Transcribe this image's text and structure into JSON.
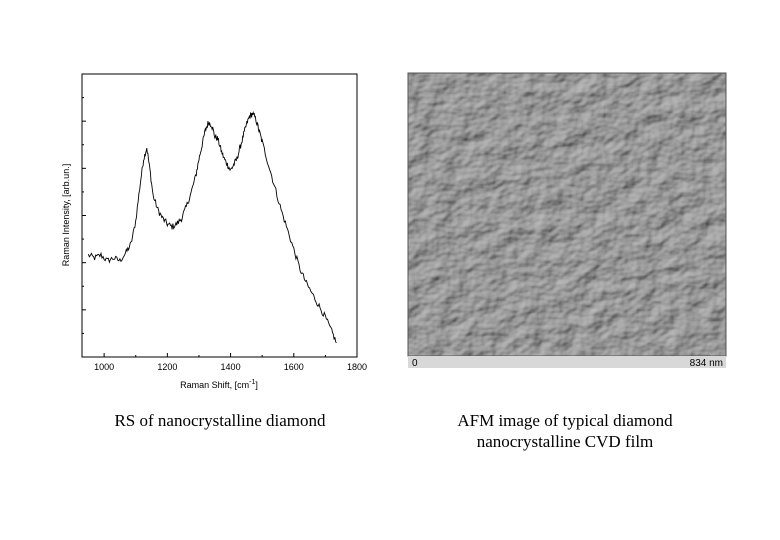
{
  "chart_data": {
    "type": "line",
    "xlabel": "Raman Shift, [cm",
    "xlabel_sup": "-1",
    "xlabel_end": "]",
    "ylabel": "Raman Intensity, [arb.un.]",
    "xlim": [
      930,
      1800
    ],
    "ylim": [
      0,
      100
    ],
    "x_ticks": [
      1000,
      1200,
      1400,
      1600,
      1800
    ],
    "x_tick_labels": [
      "1000",
      "1200",
      "1400",
      "1600",
      "1800"
    ],
    "y_tick_count": 12,
    "grid": false,
    "series": [
      {
        "x": [
          950,
          970,
          990,
          1010,
          1030,
          1050,
          1070,
          1085,
          1100,
          1115,
          1125,
          1135,
          1145,
          1155,
          1170,
          1185,
          1200,
          1215,
          1230,
          1245,
          1260,
          1275,
          1290,
          1300,
          1310,
          1320,
          1330,
          1340,
          1350,
          1360,
          1370,
          1380,
          1390,
          1400,
          1410,
          1420,
          1430,
          1440,
          1450,
          1460,
          1470,
          1480,
          1490,
          1500,
          1520,
          1540,
          1560,
          1580,
          1600,
          1620,
          1640,
          1660,
          1680,
          1700,
          1720,
          1735
        ],
        "y": [
          36,
          35,
          36,
          34,
          35,
          34,
          37,
          40,
          48,
          62,
          70,
          74,
          66,
          57,
          52,
          49,
          47,
          46,
          47,
          49,
          53,
          58,
          64,
          70,
          75,
          80,
          83,
          82,
          78,
          77,
          73,
          70,
          68,
          66,
          68,
          70,
          74,
          78,
          82,
          85,
          86,
          84,
          80,
          76,
          68,
          60,
          52,
          45,
          38,
          31,
          26,
          22,
          18,
          14,
          9,
          5
        ]
      }
    ]
  },
  "afm": {
    "scale_start": "0",
    "scale_end": "834 nm"
  },
  "captions": {
    "left": "RS of nanocrystalline diamond",
    "right": "AFM image of typical diamond nanocrystalline CVD film"
  }
}
